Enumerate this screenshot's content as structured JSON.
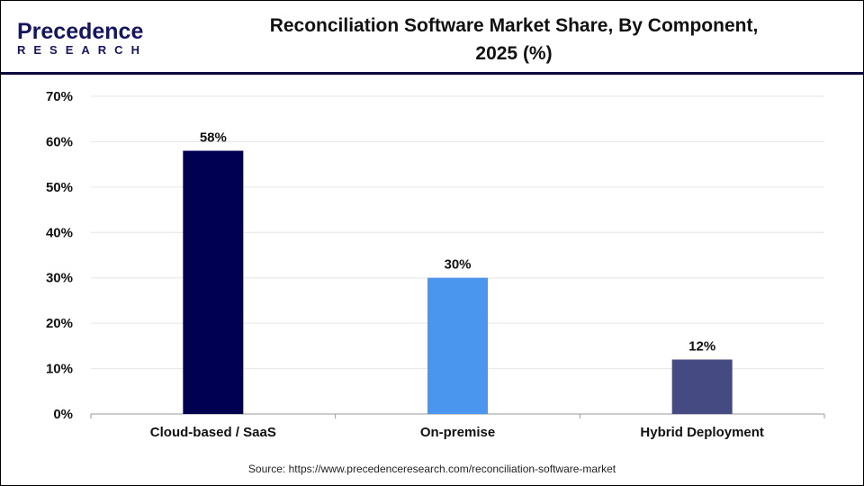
{
  "logo": {
    "line1": "Precedence",
    "line2": "RESEARCH"
  },
  "title_line1": "Reconciliation Software Market Share, By Component,",
  "title_line2": "2025 (%)",
  "source": "Source: https://www.precedenceresearch.com/reconciliation-software-market",
  "chart_data": {
    "type": "bar",
    "title": "Reconciliation Software Market Share, By Component, 2025 (%)",
    "categories": [
      "Cloud-based / SaaS",
      "On-premise",
      "Hybrid Deployment"
    ],
    "values": [
      58,
      30,
      12
    ],
    "data_labels": [
      "58%",
      "30%",
      "12%"
    ],
    "colors": [
      "#000050",
      "#4a95ee",
      "#464a82"
    ],
    "ylim": [
      0,
      70
    ],
    "yticks": [
      "0%",
      "10%",
      "20%",
      "30%",
      "40%",
      "50%",
      "60%",
      "70%"
    ],
    "grid": true,
    "xlabel": "",
    "ylabel": ""
  }
}
